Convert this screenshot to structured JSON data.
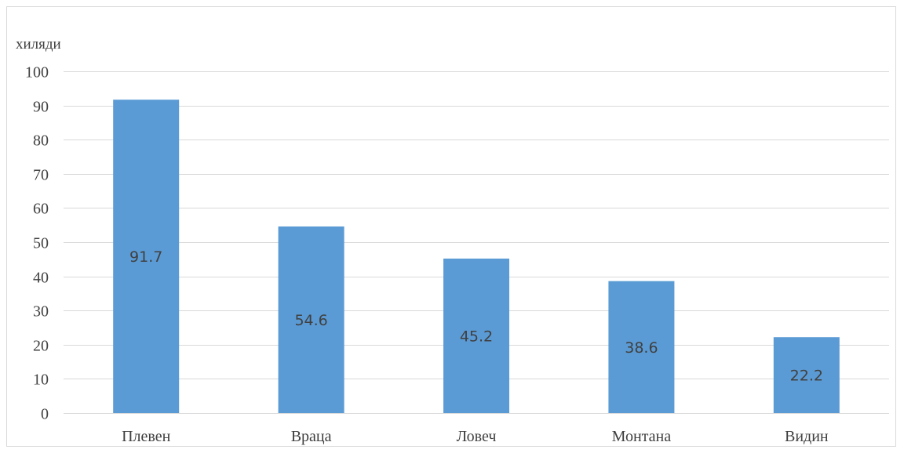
{
  "chart_data": {
    "type": "bar",
    "unit_label": "хиляди",
    "categories": [
      "Плевен",
      "Враца",
      "Ловеч",
      "Монтана",
      "Видин"
    ],
    "values": [
      91.7,
      54.6,
      45.2,
      38.6,
      22.2
    ],
    "data_labels": [
      "91.7",
      "54.6",
      "45.2",
      "38.6",
      "22.2"
    ],
    "ylim": [
      0,
      100
    ],
    "yticks": [
      0,
      10,
      20,
      30,
      40,
      50,
      60,
      70,
      80,
      90,
      100
    ],
    "grid": true,
    "colors": {
      "bar": "#5b9bd5",
      "grid": "#d9d9d9"
    }
  }
}
